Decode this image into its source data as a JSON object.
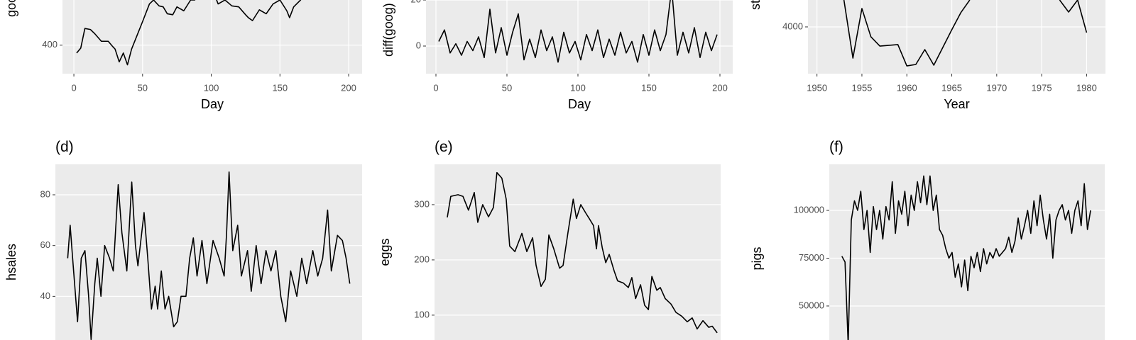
{
  "chart_data": [
    {
      "type": "line",
      "x_label": "Day",
      "y_label": "goog",
      "color": "#000000",
      "grid": true,
      "x": [
        2,
        5,
        8,
        12,
        15,
        20,
        25,
        28,
        30,
        33,
        36,
        39,
        42,
        46,
        50,
        55,
        58,
        62,
        65,
        68,
        72,
        75,
        80,
        85,
        88,
        92,
        100,
        105,
        110,
        115,
        120,
        125,
        127,
        130,
        135,
        140,
        145,
        150,
        155,
        157,
        160,
        165,
        170
      ],
      "values": [
        392,
        397,
        417,
        416,
        412,
        404,
        404,
        399,
        396,
        383,
        392,
        380,
        396,
        410,
        424,
        442,
        446,
        440,
        439,
        432,
        431,
        439,
        435,
        446,
        446,
        455,
        460,
        442,
        446,
        440,
        439,
        431,
        428,
        425,
        436,
        432,
        442,
        446,
        435,
        428,
        439,
        446,
        455
      ],
      "xlim": [
        -8.3,
        209.8
      ],
      "xticks": [
        0,
        50,
        100,
        150,
        200
      ],
      "ylim": [
        371,
        446
      ],
      "yticks": [
        400
      ]
    },
    {
      "type": "line",
      "x_label": "Day",
      "y_label": "diff(goog)",
      "color": "#000000",
      "grid": true,
      "x": [
        2,
        6,
        10,
        14,
        18,
        22,
        26,
        30,
        34,
        38,
        42,
        46,
        50,
        54,
        58,
        62,
        66,
        70,
        74,
        78,
        82,
        86,
        90,
        94,
        98,
        102,
        106,
        110,
        114,
        118,
        122,
        126,
        130,
        134,
        138,
        142,
        146,
        150,
        154,
        158,
        162,
        166,
        170,
        174,
        178,
        182,
        186,
        190,
        194,
        198
      ],
      "values": [
        2,
        7,
        -3,
        1,
        -4,
        2,
        -2,
        4,
        -5,
        16,
        -3,
        8,
        -4,
        6,
        14,
        -6,
        3,
        -5,
        7,
        -2,
        4,
        -7,
        6,
        -3,
        2,
        -6,
        5,
        -2,
        7,
        -5,
        3,
        -4,
        6,
        -3,
        2,
        -7,
        5,
        -4,
        7,
        -2,
        5,
        25,
        -4,
        6,
        -3,
        8,
        -5,
        6,
        -2,
        5
      ],
      "xlim": [
        -7,
        209
      ],
      "xticks": [
        0,
        50,
        100,
        150,
        200
      ],
      "ylim": [
        -12,
        20
      ],
      "yticks": [
        0,
        20
      ]
    },
    {
      "type": "line",
      "x_label": "Year",
      "y_label": "strikes",
      "color": "#000000",
      "grid": true,
      "x": [
        1953,
        1954,
        1955,
        1956,
        1957,
        1959,
        1960,
        1961,
        1962,
        1963,
        1965,
        1966,
        1967,
        1968,
        1977,
        1978,
        1979,
        1980
      ],
      "values": [
        4275,
        3681,
        4188,
        3899,
        3804,
        3819,
        3601,
        3616,
        3768,
        3609,
        3971,
        4145,
        4275,
        null,
        4275,
        4152,
        4275,
        3942
      ],
      "xlim": [
        1949,
        1982.1
      ],
      "xticks": [
        1950,
        1955,
        1960,
        1965,
        1970,
        1975,
        1980
      ],
      "ylim": [
        3522,
        4275
      ],
      "yticks": [
        4000
      ]
    },
    {
      "type": "line",
      "title": "(d)",
      "y_label": "hsales",
      "color": "#000000",
      "grid": true,
      "x": [
        1973.0,
        1973.2,
        1973.4,
        1973.8,
        1974.1,
        1974.4,
        1974.7,
        1974.9,
        1975.2,
        1975.4,
        1975.7,
        1976.0,
        1976.4,
        1976.7,
        1977.1,
        1977.4,
        1977.8,
        1978.2,
        1978.5,
        1978.7,
        1979.2,
        1979.5,
        1979.8,
        1980.1,
        1980.3,
        1980.6,
        1980.9,
        1981.2,
        1981.6,
        1981.9,
        1982.2,
        1982.6,
        1982.9,
        1983.2,
        1983.5,
        1983.9,
        1984.3,
        1984.8,
        1985.3,
        1985.7,
        1985.9,
        1986.1,
        1986.4,
        1986.8,
        1987.1,
        1987.6,
        1987.9,
        1988.3,
        1988.7,
        1989.1,
        1989.5,
        1989.9,
        1990.3,
        1990.7,
        1991.1,
        1991.6,
        1992.0,
        1992.4,
        1992.9,
        1993.3,
        1993.7,
        1994.1,
        1994.4,
        1994.9,
        1995.3,
        1995.6,
        1995.9
      ],
      "values": [
        55,
        68,
        55,
        30,
        55,
        58,
        40,
        23,
        45,
        55,
        40,
        60,
        55,
        50,
        84,
        65,
        50,
        85,
        60,
        52,
        73,
        55,
        35,
        44,
        35,
        50,
        35,
        40,
        28,
        30,
        40,
        40,
        55,
        63,
        48,
        62,
        45,
        62,
        55,
        48,
        65,
        89,
        58,
        68,
        48,
        58,
        42,
        60,
        45,
        58,
        50,
        58,
        40,
        30,
        50,
        40,
        55,
        45,
        58,
        48,
        55,
        74,
        50,
        64,
        62,
        55,
        45
      ],
      "xlim": [
        1972,
        1996.9
      ],
      "ylim": [
        22.8,
        92
      ],
      "yticks": [
        40,
        60,
        80
      ]
    },
    {
      "type": "line",
      "title": "(e)",
      "y_label": "eggs",
      "color": "#000000",
      "grid": true,
      "x": [
        1900,
        1901.2,
        1903.7,
        1905.4,
        1907.3,
        1909.3,
        1910.5,
        1912.2,
        1914.2,
        1915.9,
        1917.1,
        1918.8,
        1920.3,
        1921.5,
        1923.3,
        1925.7,
        1927.4,
        1929.4,
        1930.6,
        1932.3,
        1933.8,
        1935.0,
        1936.7,
        1938.7,
        1939.9,
        1941.6,
        1943.4,
        1944.5,
        1946.0,
        1947.7,
        1948.9,
        1950.4,
        1951.4,
        1952.1,
        1953.4,
        1954.6,
        1955.8,
        1957.5,
        1958.7,
        1960.7,
        1962.4,
        1963.6,
        1964.9,
        1966.6,
        1968.0,
        1969.3,
        1970.5,
        1972.2,
        1973.4,
        1975.1,
        1977.1,
        1978.8,
        1980.8,
        1982.7,
        1984.4,
        1986.1,
        1988.1,
        1990.1,
        1991.3,
        1993.0
      ],
      "values": [
        277,
        315,
        318,
        315,
        290,
        322,
        268,
        300,
        278,
        295,
        358,
        348,
        310,
        225,
        215,
        248,
        215,
        240,
        190,
        152,
        165,
        245,
        220,
        185,
        190,
        250,
        310,
        275,
        300,
        285,
        275,
        262,
        220,
        262,
        222,
        195,
        210,
        180,
        162,
        158,
        150,
        168,
        130,
        155,
        118,
        110,
        170,
        145,
        150,
        130,
        120,
        105,
        98,
        88,
        95,
        75,
        90,
        78,
        80,
        68
      ],
      "xlim": [
        1895.6,
        1994.2
      ],
      "ylim": [
        55,
        373
      ],
      "yticks": [
        100,
        200,
        300
      ]
    },
    {
      "type": "line",
      "title": "(f)",
      "y_label": "pigs",
      "color": "#000000",
      "grid": true,
      "x": [
        1980.0,
        1980.2,
        1980.4,
        1980.6,
        1980.8,
        1981.0,
        1981.2,
        1981.4,
        1981.6,
        1981.8,
        1982.0,
        1982.2,
        1982.4,
        1982.6,
        1982.8,
        1983.0,
        1983.2,
        1983.4,
        1983.6,
        1983.8,
        1984.0,
        1984.2,
        1984.4,
        1984.6,
        1984.8,
        1985.0,
        1985.2,
        1985.4,
        1985.6,
        1985.8,
        1986.0,
        1986.2,
        1986.4,
        1986.6,
        1986.8,
        1987.0,
        1987.2,
        1987.4,
        1987.6,
        1987.8,
        1988.0,
        1988.2,
        1988.4,
        1988.6,
        1988.8,
        1989.0,
        1989.2,
        1989.4,
        1989.6,
        1989.8,
        1990.0,
        1990.2,
        1990.4,
        1990.6,
        1990.8,
        1991.0,
        1991.2,
        1991.4,
        1991.6,
        1991.8,
        1992.0,
        1992.2,
        1992.4,
        1992.6,
        1992.8,
        1993.0,
        1993.2,
        1993.4,
        1993.6,
        1993.8,
        1994.0,
        1994.2,
        1994.4,
        1994.6,
        1994.8,
        1995.0,
        1995.2,
        1995.4,
        1995.6,
        1995.8
      ],
      "values": [
        76000,
        73000,
        30000,
        95000,
        105000,
        100000,
        110000,
        90000,
        100000,
        78000,
        102000,
        90000,
        100000,
        85000,
        102000,
        95000,
        115000,
        88000,
        105000,
        98000,
        110000,
        92000,
        108000,
        100000,
        115000,
        104000,
        118000,
        103000,
        118000,
        100000,
        108000,
        90000,
        87000,
        80000,
        75000,
        78000,
        65000,
        72000,
        60000,
        74000,
        58000,
        76000,
        70000,
        78000,
        68000,
        80000,
        72000,
        78000,
        75000,
        80000,
        76000,
        78000,
        80000,
        86000,
        78000,
        84000,
        96000,
        85000,
        92000,
        100000,
        88000,
        105000,
        92000,
        108000,
        95000,
        85000,
        98000,
        75000,
        95000,
        100000,
        103000,
        95000,
        100000,
        88000,
        100000,
        105000,
        92000,
        114000,
        90000,
        100000
      ],
      "xlim": [
        1979.2,
        1996.7
      ],
      "ylim": [
        32200,
        124100
      ],
      "yticks": [
        50000,
        75000,
        100000
      ]
    }
  ]
}
